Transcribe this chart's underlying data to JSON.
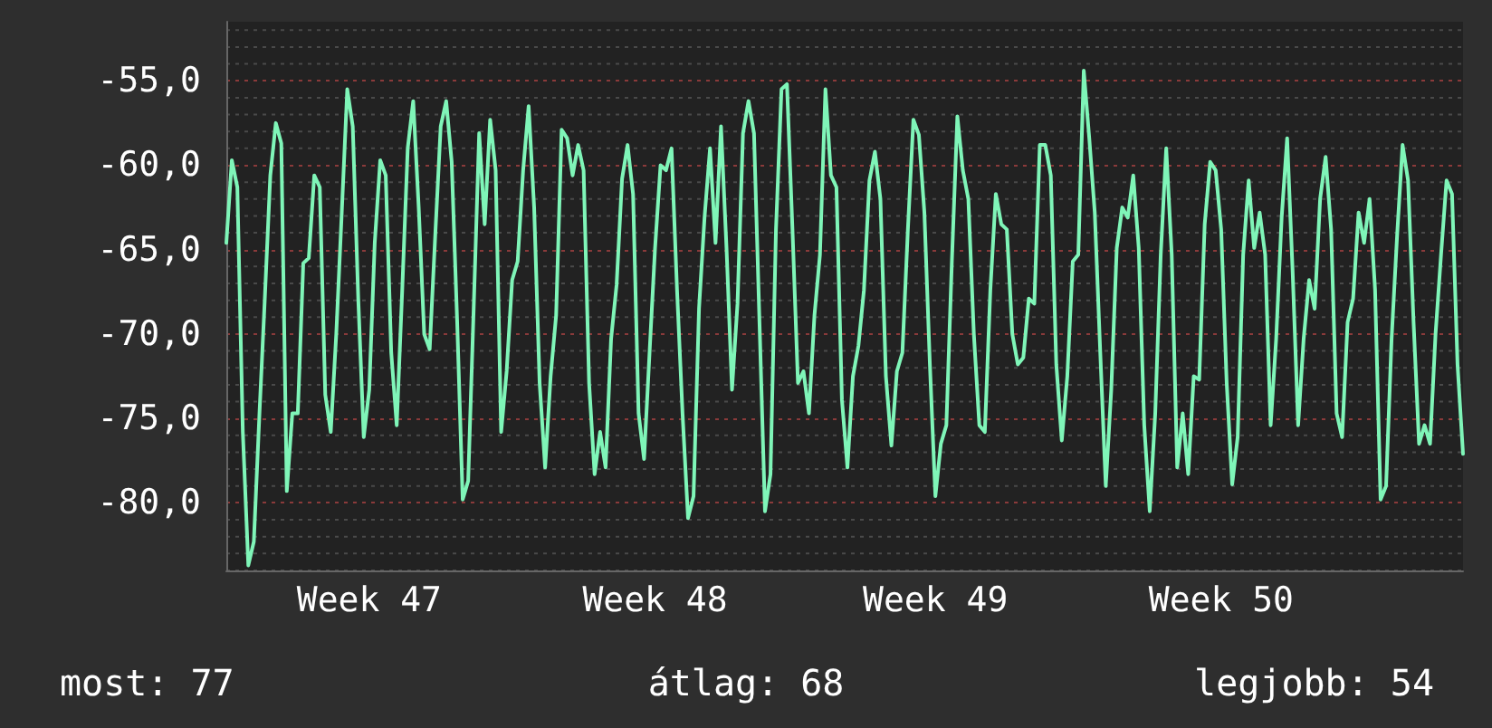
{
  "chart_data": {
    "type": "line",
    "ylim": [
      -84,
      -51.5
    ],
    "categories": [
      null,
      null,
      null,
      null,
      null,
      null,
      null,
      null,
      null,
      null,
      null,
      null,
      null,
      null,
      null,
      null,
      null,
      null,
      null,
      null,
      null,
      null,
      null,
      null,
      null,
      null,
      "Week 47",
      null,
      null,
      null,
      null,
      null,
      null,
      null,
      null,
      null,
      null,
      null,
      null,
      null,
      null,
      null,
      null,
      null,
      null,
      null,
      null,
      null,
      null,
      null,
      null,
      null,
      null,
      null,
      null,
      null,
      null,
      null,
      null,
      null,
      null,
      null,
      null,
      null,
      null,
      null,
      null,
      null,
      null,
      null,
      null,
      null,
      null,
      null,
      null,
      null,
      null,
      null,
      "Week 48",
      null,
      null,
      null,
      null,
      null,
      null,
      null,
      null,
      null,
      null,
      null,
      null,
      null,
      null,
      null,
      null,
      null,
      null,
      null,
      null,
      null,
      null,
      null,
      null,
      null,
      null,
      null,
      null,
      null,
      null,
      null,
      null,
      null,
      null,
      null,
      null,
      null,
      null,
      null,
      null,
      null,
      null,
      null,
      null,
      null,
      null,
      null,
      null,
      null,
      null,
      "Week 49",
      null,
      null,
      null,
      null,
      null,
      null,
      null,
      null,
      null,
      null,
      null,
      null,
      null,
      null,
      null,
      null,
      null,
      null,
      null,
      null,
      null,
      null,
      null,
      null,
      null,
      null,
      null,
      null,
      null,
      null,
      null,
      null,
      null,
      null,
      null,
      null,
      null,
      null,
      null,
      null,
      null,
      null,
      null,
      null,
      null,
      null,
      null,
      null,
      null,
      null,
      null,
      "Week 50",
      null,
      null,
      null,
      null,
      null,
      null,
      null,
      null,
      null,
      null,
      null,
      null,
      null,
      null,
      null,
      null,
      null,
      null,
      null,
      null,
      null,
      null,
      null,
      null,
      null,
      null,
      null,
      null,
      null,
      null,
      null,
      null,
      null,
      null,
      null,
      null,
      null,
      null,
      null,
      null,
      null,
      null,
      null,
      null
    ],
    "yticks": [
      {
        "value": -80,
        "label": "-80,0"
      },
      {
        "value": -75,
        "label": "-75,0"
      },
      {
        "value": -70,
        "label": "-70,0"
      },
      {
        "value": -65,
        "label": "-65,0"
      },
      {
        "value": -60,
        "label": "-60,0"
      },
      {
        "value": -55,
        "label": "-55,0"
      }
    ],
    "grid": "y",
    "marker": "none",
    "line_style": "solid",
    "annotations": [
      "most: 77",
      "átlag: 68",
      "legjobb: 54"
    ],
    "series": [
      {
        "color": "#7ff5b8",
        "values": [
          -64.6,
          -59.7,
          -61.3,
          -75.8,
          -83.7,
          -82.3,
          -74.9,
          -67.9,
          -60.6,
          -57.5,
          -58.7,
          -79.3,
          -74.7,
          -74.7,
          -65.8,
          -65.5,
          -60.6,
          -61.3,
          -73.6,
          -75.8,
          -70.0,
          -62.8,
          -55.5,
          -57.7,
          -67.9,
          -76.1,
          -73.3,
          -64.6,
          -59.7,
          -60.6,
          -71.1,
          -75.4,
          -67.4,
          -59.0,
          -56.2,
          -62.5,
          -70.0,
          -70.9,
          -64.2,
          -57.7,
          -56.2,
          -59.8,
          -69.3,
          -79.8,
          -78.7,
          -68.5,
          -58.1,
          -63.5,
          -57.3,
          -60.3,
          -75.8,
          -72.2,
          -66.8,
          -65.7,
          -60.3,
          -56.5,
          -62.5,
          -72.9,
          -77.9,
          -72.5,
          -68.9,
          -57.9,
          -58.4,
          -60.6,
          -58.8,
          -60.3,
          -72.9,
          -78.3,
          -75.8,
          -77.9,
          -70.3,
          -67.1,
          -60.8,
          -58.8,
          -61.7,
          -74.7,
          -77.4,
          -71.1,
          -64.9,
          -60.0,
          -60.3,
          -59.0,
          -67.4,
          -74.7,
          -80.9,
          -79.6,
          -68.5,
          -63.1,
          -59.0,
          -64.6,
          -57.7,
          -64.9,
          -73.3,
          -68.2,
          -58.1,
          -56.2,
          -58.1,
          -69.3,
          -80.5,
          -78.3,
          -63.8,
          -55.5,
          -55.2,
          -63.8,
          -72.9,
          -72.2,
          -74.7,
          -68.9,
          -65.3,
          -55.5,
          -60.6,
          -61.3,
          -73.9,
          -77.9,
          -72.5,
          -70.7,
          -67.4,
          -60.9,
          -59.2,
          -62.0,
          -72.5,
          -76.6,
          -72.2,
          -71.1,
          -63.8,
          -57.3,
          -58.2,
          -62.8,
          -71.8,
          -79.6,
          -76.5,
          -75.4,
          -65.7,
          -57.1,
          -60.3,
          -62.0,
          -70.0,
          -75.4,
          -75.8,
          -67.4,
          -61.7,
          -63.5,
          -63.8,
          -70.0,
          -71.8,
          -71.4,
          -67.9,
          -68.2,
          -58.8,
          -58.8,
          -60.6,
          -71.8,
          -76.3,
          -72.5,
          -65.7,
          -65.3,
          -54.4,
          -58.4,
          -62.8,
          -71.1,
          -79.0,
          -73.3,
          -64.9,
          -62.5,
          -63.1,
          -60.6,
          -64.9,
          -75.4,
          -80.5,
          -74.7,
          -65.3,
          -59.0,
          -65.3,
          -77.9,
          -74.7,
          -78.3,
          -72.5,
          -72.7,
          -63.5,
          -59.8,
          -60.3,
          -63.8,
          -72.9,
          -78.9,
          -76.1,
          -65.3,
          -60.9,
          -64.9,
          -62.8,
          -65.3,
          -75.4,
          -70.3,
          -63.1,
          -58.4,
          -66.3,
          -75.4,
          -70.3,
          -66.8,
          -68.5,
          -62.0,
          -59.5,
          -63.8,
          -74.7,
          -76.1,
          -69.3,
          -67.9,
          -62.8,
          -64.6,
          -62.0,
          -67.4,
          -79.8,
          -79.0,
          -70.3,
          -64.2,
          -58.8,
          -60.9,
          -69.3,
          -76.5,
          -75.4,
          -76.5,
          -70.0,
          -65.3,
          -60.9,
          -61.7,
          -71.8,
          -77.1
        ]
      }
    ]
  }
}
